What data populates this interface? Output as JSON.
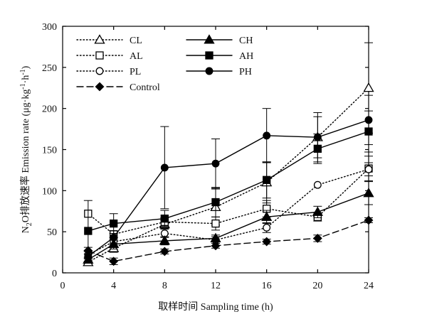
{
  "chart_data": {
    "type": "line",
    "title": "",
    "xlabel": "取样时间 Sampling time (h)",
    "ylabel": {
      "prefix": "N",
      "sub": "2",
      "main": "O排放速率 Emission rate (μg·kg",
      "sup1": "-1",
      "mid": "·h",
      "sup2": "-1",
      "suffix": ")"
    },
    "xlim": [
      0,
      24
    ],
    "ylim": [
      0,
      300
    ],
    "xticks": [
      0,
      4,
      8,
      12,
      16,
      20,
      24
    ],
    "yticks": [
      0,
      50,
      100,
      150,
      200,
      250,
      300
    ],
    "grid": false,
    "legend_position": "top-left",
    "series": [
      {
        "name": "CL",
        "style": "dotted",
        "marker": "triangle",
        "filled": false,
        "x": [
          2,
          4,
          8,
          12,
          16,
          20,
          24
        ],
        "y": [
          13,
          30,
          59,
          80,
          110,
          165,
          225
        ],
        "err": [
          4,
          5,
          5,
          22,
          25,
          25,
          55
        ]
      },
      {
        "name": "AL",
        "style": "dotted",
        "marker": "square",
        "filled": false,
        "x": [
          2,
          4,
          8,
          12,
          16,
          20,
          24
        ],
        "y": [
          72,
          47,
          62,
          60,
          78,
          68,
          127
        ],
        "err": [
          0,
          4,
          5,
          8,
          10,
          5,
          15
        ]
      },
      {
        "name": "PL",
        "style": "dotted",
        "marker": "circle",
        "filled": false,
        "x": [
          2,
          4,
          8,
          12,
          16,
          20,
          24
        ],
        "y": [
          22,
          38,
          48,
          40,
          55,
          107,
          126
        ],
        "err": [
          4,
          5,
          5,
          4,
          6,
          0,
          8
        ]
      },
      {
        "name": "Control",
        "style": "dashed",
        "marker": "diamond",
        "filled": true,
        "x": [
          2,
          4,
          8,
          12,
          16,
          20,
          24
        ],
        "y": [
          27,
          14,
          26,
          33,
          38,
          42,
          64
        ],
        "err": [
          4,
          4,
          3,
          3,
          3,
          4,
          3
        ]
      },
      {
        "name": "CH",
        "style": "solid",
        "marker": "triangle",
        "filled": true,
        "x": [
          2,
          4,
          8,
          12,
          16,
          20,
          24
        ],
        "y": [
          16,
          35,
          39,
          42,
          68,
          74,
          97
        ],
        "err": [
          3,
          6,
          5,
          4,
          8,
          7,
          14
        ]
      },
      {
        "name": "AH",
        "style": "solid",
        "marker": "square",
        "filled": true,
        "x": [
          2,
          4,
          8,
          12,
          16,
          20,
          24
        ],
        "y": [
          51,
          60,
          66,
          86,
          113,
          151,
          172
        ],
        "err": [
          37,
          12,
          10,
          18,
          22,
          18,
          25
        ]
      },
      {
        "name": "PH",
        "style": "solid",
        "marker": "circle",
        "filled": true,
        "x": [
          2,
          4,
          8,
          12,
          16,
          20,
          24
        ],
        "y": [
          20,
          43,
          128,
          133,
          167,
          165,
          186
        ],
        "err": [
          6,
          8,
          50,
          30,
          33,
          30,
          30
        ]
      }
    ],
    "legend_columns": [
      [
        "CL",
        "AL",
        "PL",
        "Control"
      ],
      [
        "CH",
        "AH",
        "PH"
      ]
    ]
  }
}
